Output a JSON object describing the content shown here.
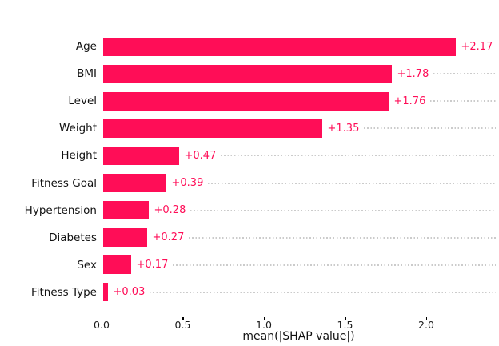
{
  "chart_data": {
    "type": "bar",
    "orientation": "horizontal",
    "xlabel": "mean(|SHAP value|)",
    "categories": [
      "Age",
      "BMI",
      "Level",
      "Weight",
      "Height",
      "Fitness Goal",
      "Hypertension",
      "Diabetes",
      "Sex",
      "Fitness Type"
    ],
    "values": [
      2.17,
      1.78,
      1.76,
      1.35,
      0.47,
      0.39,
      0.28,
      0.27,
      0.17,
      0.03
    ],
    "value_labels": [
      "+2.17",
      "+1.78",
      "+1.76",
      "+1.35",
      "+0.47",
      "+0.39",
      "+0.28",
      "+0.27",
      "+0.17",
      "+0.03"
    ],
    "x_tick_labels": [
      "0.0",
      "0.5",
      "1.0",
      "1.5",
      "2.0"
    ],
    "x_tick_values": [
      0,
      0.5,
      1.0,
      1.5,
      2.0
    ],
    "xlim": [
      0,
      2.43
    ],
    "grid": "horizontal-dotted",
    "legend": "none",
    "colors": {
      "bar": "#ff0d57",
      "value_label": "#ff0d57",
      "gridline": "#cbcbcb",
      "axis": "#000000",
      "text": "#111111",
      "background": "#ffffff"
    }
  }
}
